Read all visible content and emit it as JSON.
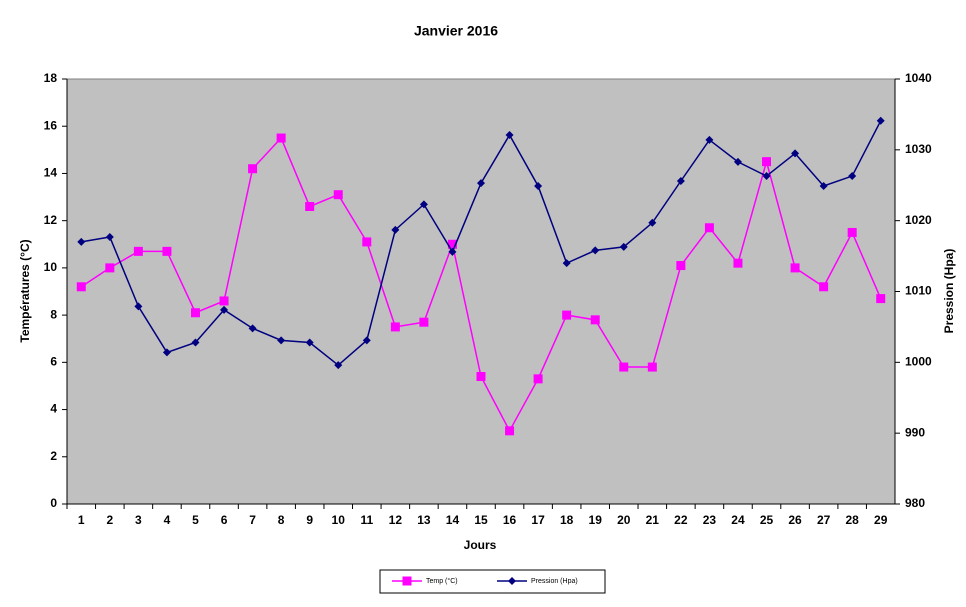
{
  "chart_data": {
    "type": "line",
    "title": "Janvier 2016",
    "x_label": "Jours",
    "y_label": "Températures (°C)",
    "y2_label": "Pression (Hpa)",
    "categories": [
      "1",
      "2",
      "3",
      "4",
      "5",
      "6",
      "7",
      "8",
      "9",
      "10",
      "11",
      "12",
      "13",
      "14",
      "15",
      "16",
      "17",
      "18",
      "19",
      "20",
      "21",
      "22",
      "23",
      "24",
      "25",
      "26",
      "27",
      "28",
      "29"
    ],
    "series": [
      {
        "name": "Temp (°C)",
        "color": "#ff00ff",
        "marker": "square",
        "values": [
          9.2,
          10.0,
          10.7,
          10.7,
          8.1,
          8.6,
          14.2,
          15.5,
          12.6,
          13.1,
          11.1,
          7.5,
          7.7,
          11.0,
          5.4,
          3.1,
          5.3,
          8.0,
          7.8,
          5.8,
          5.8,
          10.1,
          11.7,
          10.2,
          14.5,
          10.0,
          9.2,
          11.5,
          8.7
        ]
      },
      {
        "name": "Pression (Hpa)",
        "color": "#000080",
        "marker": "diamond",
        "axis": "y2",
        "values": [
          1017.0,
          1017.7,
          1007.9,
          1001.4,
          1002.8,
          1007.4,
          1004.8,
          1003.1,
          1002.8,
          999.6,
          1003.1,
          1018.7,
          1022.3,
          1015.6,
          1025.3,
          1032.1,
          1024.9,
          1014.0,
          1015.8,
          1016.3,
          1019.7,
          1025.6,
          1031.4,
          1028.3,
          1026.3,
          1029.5,
          1024.9,
          1026.3,
          1034.1
        ]
      }
    ],
    "ylim": [
      0,
      18
    ],
    "yticks": [
      0,
      2,
      4,
      6,
      8,
      10,
      12,
      14,
      16,
      18
    ],
    "y2lim": [
      980,
      1040
    ],
    "y2ticks": [
      980,
      990,
      1000,
      1010,
      1020,
      1030,
      1040
    ],
    "plot_background": "#c0c0c0",
    "legend": "bottom"
  }
}
